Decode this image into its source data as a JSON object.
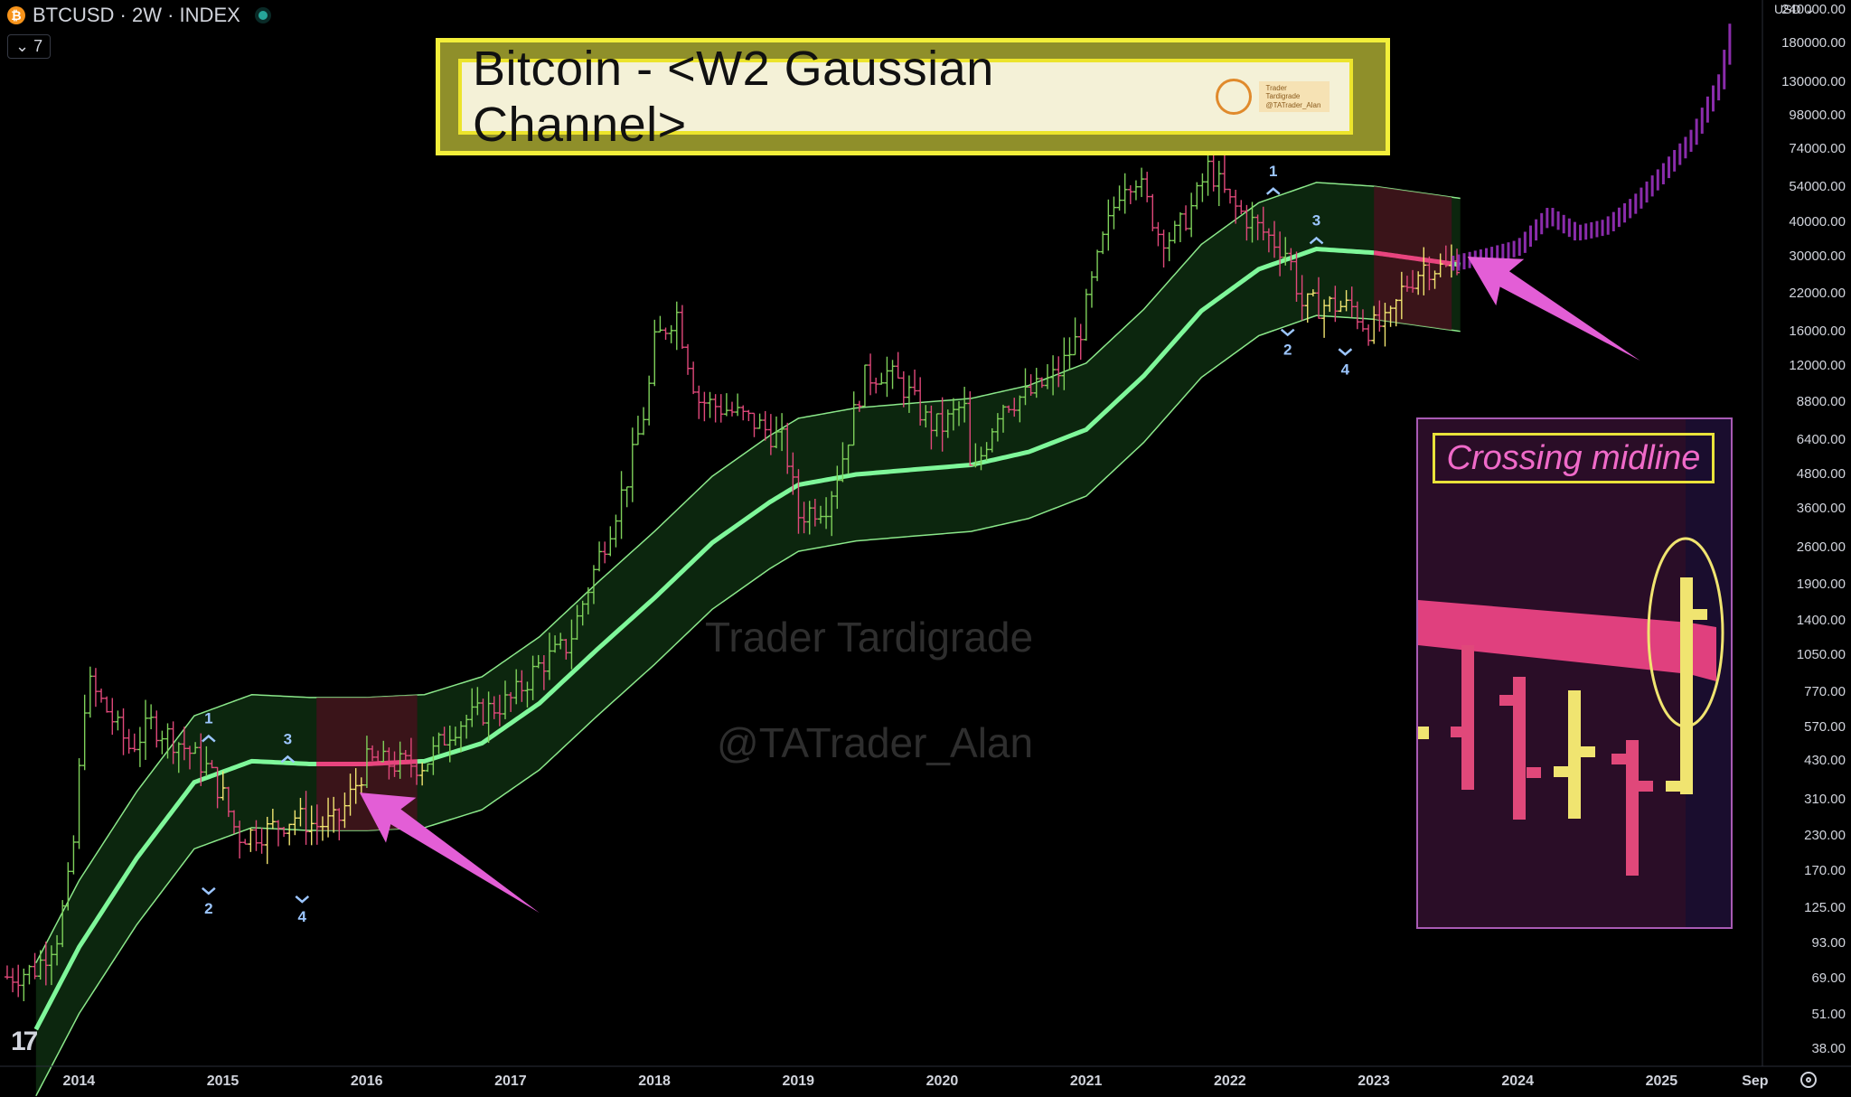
{
  "header": {
    "symbol_line": "BTCUSD · 2W · INDEX",
    "indicator_toggle": "7",
    "currency": "USD"
  },
  "title": {
    "text": "Bitcoin - <W2 Gaussian Channel>",
    "badge_line1": "Trader Tardigrade",
    "badge_line2": "@TATrader_Alan"
  },
  "watermark": {
    "line1": "Trader Tardigrade",
    "line2": "@TATrader_Alan"
  },
  "inset": {
    "label": "Crossing midline"
  },
  "colors": {
    "bull_candle": "#7ed05a",
    "bear_candle": "#e0487a",
    "pullback_candle": "#f0e470",
    "channel_band": "#0d2a10",
    "channel_border": "#8be88a",
    "midline": "#7ff79a",
    "midline_bear": "#e8447e",
    "projection": "#8a2cab",
    "wave_label": "#9cc6ff",
    "arrow": "#e35ed6"
  },
  "chart_data": {
    "type": "line",
    "title": "Bitcoin - <W2 Gaussian Channel>",
    "scale": "log",
    "price_axis_labels": [
      "240000.00",
      "180000.00",
      "130000.00",
      "98000.00",
      "74000.00",
      "54000.00",
      "40000.00",
      "30000.00",
      "22000.00",
      "16000.00",
      "12000.00",
      "8800.00",
      "6400.00",
      "4800.00",
      "3600.00",
      "2600.00",
      "1900.00",
      "1400.00",
      "1050.00",
      "770.00",
      "570.00",
      "430.00",
      "310.00",
      "230.00",
      "170.00",
      "125.00",
      "93.00",
      "69.00",
      "51.00",
      "38.00"
    ],
    "time_axis_labels": [
      "2014",
      "2015",
      "2016",
      "2017",
      "2018",
      "2019",
      "2020",
      "2021",
      "2022",
      "2023",
      "2024",
      "2025",
      "Sep"
    ],
    "ylim": [
      33,
      260000
    ],
    "xlim": [
      2013.45,
      2025.7
    ],
    "series": [
      {
        "name": "BTCUSD",
        "x": [
          2013.5,
          2013.7,
          2013.85,
          2013.95,
          2014.05,
          2014.2,
          2014.35,
          2014.5,
          2014.7,
          2014.9,
          2015.0,
          2015.1,
          2015.3,
          2015.5,
          2015.65,
          2015.8,
          2016.0,
          2016.2,
          2016.4,
          2016.6,
          2016.8,
          2017.0,
          2017.2,
          2017.4,
          2017.6,
          2017.8,
          2017.95,
          2018.0,
          2018.15,
          2018.3,
          2018.5,
          2018.7,
          2018.9,
          2019.0,
          2019.2,
          2019.3,
          2019.45,
          2019.6,
          2019.75,
          2019.9,
          2020.0,
          2020.15,
          2020.2,
          2020.4,
          2020.6,
          2020.8,
          2020.95,
          2021.1,
          2021.25,
          2021.35,
          2021.5,
          2021.6,
          2021.75,
          2021.85,
          2022.0,
          2022.2,
          2022.4,
          2022.5,
          2022.7,
          2022.85,
          2022.95,
          2023.1,
          2023.2,
          2023.35,
          2023.5,
          2023.6
        ],
        "values": [
          70,
          75,
          100,
          180,
          850,
          650,
          480,
          590,
          500,
          400,
          320,
          230,
          240,
          270,
          250,
          260,
          430,
          420,
          420,
          580,
          650,
          720,
          970,
          1150,
          2300,
          4500,
          9000,
          14500,
          19000,
          9000,
          8300,
          7400,
          6300,
          3400,
          3800,
          5400,
          10800,
          11500,
          9800,
          7400,
          7200,
          8700,
          4500,
          8700,
          9400,
          11200,
          15500,
          32000,
          57000,
          59000,
          37000,
          35000,
          47000,
          64000,
          47000,
          38000,
          31000,
          20000,
          20000,
          19500,
          16500,
          17000,
          23000,
          28000,
          27000,
          30000
        ]
      },
      {
        "name": "Gaussian Midline",
        "x": [
          2013.7,
          2014.0,
          2014.4,
          2014.8,
          2015.2,
          2015.6,
          2016.0,
          2016.4,
          2016.8,
          2017.2,
          2017.6,
          2018.0,
          2018.4,
          2018.8,
          2019.0,
          2019.4,
          2019.8,
          2020.2,
          2020.6,
          2021.0,
          2021.4,
          2021.8,
          2022.2,
          2022.6,
          2023.0,
          2023.6
        ],
        "values": [
          45,
          90,
          190,
          360,
          430,
          420,
          420,
          430,
          500,
          700,
          1100,
          1700,
          2700,
          3800,
          4400,
          4800,
          5000,
          5200,
          5800,
          7000,
          11000,
          19000,
          27000,
          32000,
          31000,
          28000
        ]
      },
      {
        "name": "Projection",
        "x": [
          2023.55,
          2023.8,
          2024.0,
          2024.2,
          2024.4,
          2024.6,
          2024.8,
          2025.0,
          2025.2,
          2025.4,
          2025.5
        ],
        "values": [
          28000,
          30000,
          32000,
          42000,
          36000,
          38000,
          46000,
          60000,
          80000,
          130000,
          230000
        ]
      }
    ],
    "wave_labels": [
      {
        "label": "1",
        "x": 2014.9,
        "y": 500
      },
      {
        "label": "2",
        "x": 2014.9,
        "y": 150
      },
      {
        "label": "3",
        "x": 2015.45,
        "y": 420
      },
      {
        "label": "4",
        "x": 2015.55,
        "y": 140
      },
      {
        "label": "1",
        "x": 2022.3,
        "y": 50000
      },
      {
        "label": "2",
        "x": 2022.4,
        "y": 16500
      },
      {
        "label": "3",
        "x": 2022.6,
        "y": 33000
      },
      {
        "label": "4",
        "x": 2022.8,
        "y": 14000
      }
    ]
  }
}
